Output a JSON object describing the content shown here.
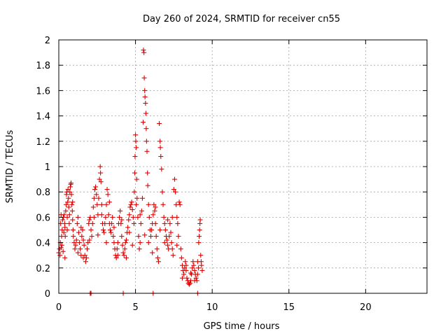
{
  "chart_data": {
    "type": "scatter",
    "title": "Day 260 of 2024, SRMTID for receiver cn55",
    "xlabel": "GPS time / hours",
    "ylabel": "SRMTID / TECUs",
    "xlim": [
      0,
      24
    ],
    "ylim": [
      0,
      2
    ],
    "xticks": [
      0,
      5,
      10,
      15,
      20
    ],
    "xtick_labels": [
      "0",
      "5",
      "10",
      "15",
      "20"
    ],
    "yticks": [
      0,
      0.2,
      0.4,
      0.6,
      0.8,
      1,
      1.2,
      1.4,
      1.6,
      1.8,
      2
    ],
    "ytick_labels": [
      "0",
      "0.2",
      "0.4",
      "0.6",
      "0.8",
      "1",
      "1.2",
      "1.4",
      "1.6",
      "1.8",
      "2"
    ],
    "grid": true,
    "marker": "+",
    "marker_color": "#e00000",
    "series": [
      {
        "name": "SRMTID",
        "points": [
          [
            0.0,
            0.32
          ],
          [
            0.05,
            0.35
          ],
          [
            0.08,
            0.3
          ],
          [
            0.1,
            0.4
          ],
          [
            0.12,
            0.55
          ],
          [
            0.15,
            0.62
          ],
          [
            0.18,
            0.45
          ],
          [
            0.2,
            0.38
          ],
          [
            0.22,
            0.5
          ],
          [
            0.25,
            0.58
          ],
          [
            0.28,
            0.33
          ],
          [
            0.3,
            0.6
          ],
          [
            0.33,
            0.48
          ],
          [
            0.35,
            0.62
          ],
          [
            0.38,
            0.55
          ],
          [
            0.4,
            0.52
          ],
          [
            0.42,
            0.45
          ],
          [
            0.45,
            0.65
          ],
          [
            0.48,
            0.7
          ],
          [
            0.5,
            0.78
          ],
          [
            0.52,
            0.8
          ],
          [
            0.55,
            0.6
          ],
          [
            0.58,
            0.72
          ],
          [
            0.6,
            0.82
          ],
          [
            0.63,
            0.75
          ],
          [
            0.65,
            0.68
          ],
          [
            0.68,
            0.55
          ],
          [
            0.7,
            0.62
          ],
          [
            0.72,
            0.8
          ],
          [
            0.75,
            0.84
          ],
          [
            0.78,
            0.86
          ],
          [
            0.8,
            0.87
          ],
          [
            0.82,
            0.78
          ],
          [
            0.85,
            0.7
          ],
          [
            0.88,
            0.65
          ],
          [
            0.9,
            0.58
          ],
          [
            0.93,
            0.5
          ],
          [
            0.95,
            0.45
          ],
          [
            1.0,
            0.4
          ],
          [
            1.05,
            0.35
          ],
          [
            1.1,
            0.38
          ],
          [
            1.15,
            0.42
          ],
          [
            1.2,
            0.55
          ],
          [
            1.25,
            0.6
          ],
          [
            1.3,
            0.48
          ],
          [
            1.35,
            0.4
          ],
          [
            1.4,
            0.35
          ],
          [
            1.45,
            0.3
          ],
          [
            1.5,
            0.45
          ],
          [
            1.55,
            0.5
          ],
          [
            1.6,
            0.42
          ],
          [
            1.65,
            0.38
          ],
          [
            1.7,
            0.3
          ],
          [
            1.75,
            0.25
          ],
          [
            1.8,
            0.28
          ],
          [
            1.85,
            0.35
          ],
          [
            1.9,
            0.4
          ],
          [
            1.95,
            0.55
          ],
          [
            2.0,
            0.58
          ],
          [
            2.05,
            0.6
          ],
          [
            2.1,
            0.5
          ],
          [
            2.15,
            0.45
          ],
          [
            2.2,
            0.55
          ],
          [
            2.25,
            0.68
          ],
          [
            2.3,
            0.75
          ],
          [
            2.35,
            0.82
          ],
          [
            2.4,
            0.84
          ],
          [
            2.45,
            0.78
          ],
          [
            2.5,
            0.7
          ],
          [
            2.55,
            0.62
          ],
          [
            2.6,
            0.75
          ],
          [
            2.65,
            0.9
          ],
          [
            2.7,
            1.0
          ],
          [
            2.72,
            0.95
          ],
          [
            2.75,
            0.88
          ],
          [
            2.8,
            0.7
          ],
          [
            2.85,
            0.55
          ],
          [
            2.9,
            0.5
          ],
          [
            2.95,
            0.48
          ],
          [
            3.0,
            0.55
          ],
          [
            3.05,
            0.6
          ],
          [
            3.1,
            0.7
          ],
          [
            3.15,
            0.82
          ],
          [
            3.2,
            0.78
          ],
          [
            3.25,
            0.62
          ],
          [
            3.3,
            0.55
          ],
          [
            3.35,
            0.5
          ],
          [
            3.4,
            0.48
          ],
          [
            3.45,
            0.55
          ],
          [
            3.5,
            0.6
          ],
          [
            3.55,
            0.45
          ],
          [
            3.6,
            0.4
          ],
          [
            3.65,
            0.35
          ],
          [
            3.7,
            0.3
          ],
          [
            3.75,
            0.28
          ],
          [
            3.8,
            0.35
          ],
          [
            3.85,
            0.4
          ],
          [
            3.9,
            0.55
          ],
          [
            3.95,
            0.6
          ],
          [
            4.0,
            0.65
          ],
          [
            4.05,
            0.55
          ],
          [
            4.1,
            0.45
          ],
          [
            4.15,
            0.38
          ],
          [
            4.2,
            0.32
          ],
          [
            4.25,
            0.3
          ],
          [
            4.3,
            0.35
          ],
          [
            4.35,
            0.4
          ],
          [
            4.4,
            0.42
          ],
          [
            4.45,
            0.48
          ],
          [
            4.5,
            0.52
          ],
          [
            4.55,
            0.58
          ],
          [
            4.6,
            0.62
          ],
          [
            4.65,
            0.68
          ],
          [
            4.7,
            0.7
          ],
          [
            4.75,
            0.72
          ],
          [
            4.8,
            0.66
          ],
          [
            4.85,
            0.6
          ],
          [
            4.9,
            0.55
          ],
          [
            4.92,
            0.8
          ],
          [
            4.95,
            0.95
          ],
          [
            4.97,
            1.08
          ],
          [
            5.0,
            1.25
          ],
          [
            5.02,
            1.2
          ],
          [
            5.05,
            1.15
          ],
          [
            5.08,
            0.9
          ],
          [
            5.1,
            0.75
          ],
          [
            5.15,
            0.6
          ],
          [
            5.2,
            0.45
          ],
          [
            5.25,
            0.35
          ],
          [
            5.3,
            0.4
          ],
          [
            5.35,
            0.55
          ],
          [
            5.4,
            0.65
          ],
          [
            5.45,
            0.75
          ],
          [
            5.5,
            1.35
          ],
          [
            5.52,
            1.92
          ],
          [
            5.55,
            1.9
          ],
          [
            5.57,
            1.7
          ],
          [
            5.6,
            1.6
          ],
          [
            5.62,
            1.55
          ],
          [
            5.65,
            1.5
          ],
          [
            5.68,
            1.42
          ],
          [
            5.7,
            1.3
          ],
          [
            5.72,
            1.2
          ],
          [
            5.75,
            1.12
          ],
          [
            5.78,
            0.95
          ],
          [
            5.8,
            0.85
          ],
          [
            5.85,
            0.7
          ],
          [
            5.9,
            0.6
          ],
          [
            5.95,
            0.5
          ],
          [
            6.0,
            0.45
          ],
          [
            6.05,
            0.5
          ],
          [
            6.1,
            0.55
          ],
          [
            6.15,
            0.62
          ],
          [
            6.2,
            0.7
          ],
          [
            6.25,
            0.65
          ],
          [
            6.3,
            0.55
          ],
          [
            6.35,
            0.45
          ],
          [
            6.4,
            0.35
          ],
          [
            6.45,
            0.28
          ],
          [
            6.5,
            0.25
          ],
          [
            6.55,
            1.34
          ],
          [
            6.6,
            1.2
          ],
          [
            6.62,
            1.15
          ],
          [
            6.65,
            1.08
          ],
          [
            6.7,
            0.98
          ],
          [
            6.75,
            0.8
          ],
          [
            6.8,
            0.7
          ],
          [
            6.85,
            0.6
          ],
          [
            6.9,
            0.55
          ],
          [
            6.95,
            0.5
          ],
          [
            7.0,
            0.45
          ],
          [
            7.05,
            0.42
          ],
          [
            7.1,
            0.38
          ],
          [
            7.15,
            0.35
          ],
          [
            7.2,
            0.45
          ],
          [
            7.25,
            0.55
          ],
          [
            7.3,
            0.48
          ],
          [
            7.35,
            0.4
          ],
          [
            7.4,
            0.35
          ],
          [
            7.45,
            0.3
          ],
          [
            7.5,
            0.82
          ],
          [
            7.55,
            0.9
          ],
          [
            7.6,
            0.8
          ],
          [
            7.65,
            0.7
          ],
          [
            7.7,
            0.6
          ],
          [
            7.75,
            0.55
          ],
          [
            7.8,
            0.45
          ],
          [
            7.85,
            0.72
          ],
          [
            7.9,
            0.7
          ],
          [
            7.95,
            0.35
          ],
          [
            8.0,
            0.28
          ],
          [
            8.05,
            0.22
          ],
          [
            8.1,
            0.18
          ],
          [
            8.15,
            0.15
          ],
          [
            8.2,
            0.2
          ],
          [
            8.25,
            0.25
          ],
          [
            8.3,
            0.18
          ],
          [
            8.35,
            0.12
          ],
          [
            8.4,
            0.1
          ],
          [
            8.45,
            0.08
          ],
          [
            8.5,
            0.07
          ],
          [
            8.55,
            0.08
          ],
          [
            8.6,
            0.1
          ],
          [
            8.65,
            0.15
          ],
          [
            8.7,
            0.2
          ],
          [
            8.75,
            0.25
          ],
          [
            8.8,
            0.22
          ],
          [
            8.85,
            0.18
          ],
          [
            8.9,
            0.15
          ],
          [
            8.95,
            0.12
          ],
          [
            9.0,
            0.1
          ],
          [
            9.05,
            0.15
          ],
          [
            9.1,
            0.2
          ],
          [
            9.12,
            0.4
          ],
          [
            9.15,
            0.45
          ],
          [
            9.18,
            0.5
          ],
          [
            9.2,
            0.55
          ],
          [
            9.22,
            0.58
          ],
          [
            9.25,
            0.3
          ],
          [
            9.28,
            0.25
          ],
          [
            9.3,
            0.22
          ],
          [
            9.35,
            0.18
          ],
          [
            0.15,
            0.36
          ],
          [
            0.4,
            0.28
          ],
          [
            0.55,
            0.5
          ],
          [
            0.9,
            0.72
          ],
          [
            1.25,
            0.32
          ],
          [
            1.45,
            0.52
          ],
          [
            1.6,
            0.28
          ],
          [
            2.0,
            0.42
          ],
          [
            2.3,
            0.6
          ],
          [
            2.55,
            0.46
          ],
          [
            2.8,
            0.62
          ],
          [
            3.1,
            0.4
          ],
          [
            3.3,
            0.72
          ],
          [
            3.6,
            0.52
          ],
          [
            3.85,
            0.3
          ],
          [
            4.1,
            0.58
          ],
          [
            4.4,
            0.28
          ],
          [
            4.6,
            0.48
          ],
          [
            4.8,
            0.38
          ],
          [
            5.05,
            0.7
          ],
          [
            5.3,
            0.62
          ],
          [
            5.6,
            0.46
          ],
          [
            5.85,
            0.4
          ],
          [
            6.1,
            0.32
          ],
          [
            6.3,
            0.68
          ],
          [
            6.6,
            0.5
          ],
          [
            6.9,
            0.4
          ],
          [
            7.1,
            0.58
          ],
          [
            7.4,
            0.6
          ],
          [
            7.7,
            0.38
          ],
          [
            8.05,
            0.12
          ],
          [
            8.3,
            0.22
          ],
          [
            8.6,
            0.16
          ],
          [
            8.85,
            0.1
          ],
          [
            9.05,
            0.25
          ],
          [
            2.05,
            0.0
          ],
          [
            2.1,
            0.0
          ],
          [
            4.2,
            0.0
          ],
          [
            6.15,
            0.0
          ],
          [
            9.05,
            0.0
          ]
        ]
      }
    ]
  }
}
